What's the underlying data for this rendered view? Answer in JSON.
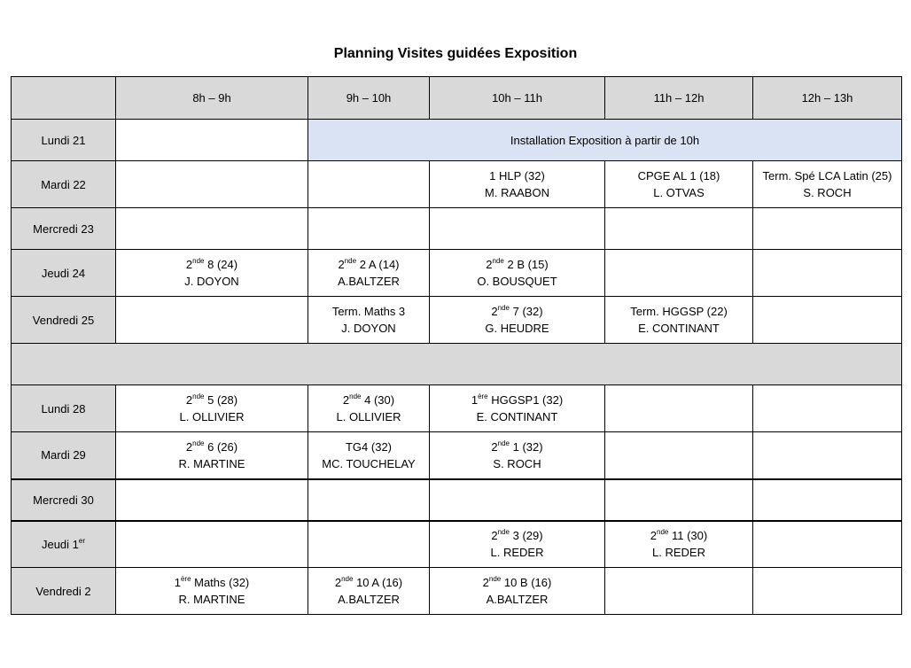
{
  "title": "Planning Visites guidées Exposition",
  "colors": {
    "header_bg": "#d9d9d9",
    "highlight_bg": "#dae3f3"
  },
  "columns": [
    "",
    "8h – 9h",
    "9h – 10h",
    "10h – 11h",
    "11h – 12h",
    "12h – 13h"
  ],
  "rows": [
    {
      "day": "Lundi 21",
      "span": {
        "from": 2,
        "cols": 4,
        "text": "Installation Exposition à partir de 10h"
      }
    },
    {
      "day": "Mardi 22",
      "cells": [
        null,
        null,
        {
          "a": "1 HLP (32)",
          "name": "M. RAABON"
        },
        {
          "a": "CPGE AL 1 (18)",
          "name": "L. OTVAS"
        },
        {
          "a": "Term. Spé LCA Latin (25)",
          "name": "S. ROCH"
        }
      ]
    },
    {
      "day": "Mercredi 23",
      "cells": [
        null,
        null,
        null,
        null,
        null
      ]
    },
    {
      "day": "Jeudi 24",
      "cells": [
        {
          "a": "2",
          "sup": "nde",
          "b": " 8 (24)",
          "name": "J. DOYON"
        },
        {
          "a": "2",
          "sup": "nde",
          "b": " 2 A (14)",
          "name": "A.BALTZER"
        },
        {
          "a": "2",
          "sup": "nde",
          "b": " 2 B (15)",
          "name": "O. BOUSQUET"
        },
        null,
        null
      ]
    },
    {
      "day": "Vendredi 25",
      "cells": [
        null,
        {
          "a": "Term. Maths 3",
          "name": "J. DOYON"
        },
        {
          "a": "2",
          "sup": "nde",
          "b": " 7 (32)",
          "name": "G. HEUDRE"
        },
        {
          "a": "Term. HGGSP (22)",
          "name": "E. CONTINANT"
        },
        null
      ]
    },
    {
      "gap": true
    },
    {
      "day": "Lundi 28",
      "cells": [
        {
          "a": "2",
          "sup": "nde",
          "b": " 5 (28)",
          "name": "L. OLLIVIER"
        },
        {
          "a": "2",
          "sup": "nde",
          "b": " 4 (30)",
          "name": "L. OLLIVIER"
        },
        {
          "a": "1",
          "sup": "ère",
          "b": " HGGSP1 (32)",
          "name": "E. CONTINANT"
        },
        null,
        null
      ]
    },
    {
      "day": "Mardi 29",
      "cells": [
        {
          "a": "2",
          "sup": "nde",
          "b": " 6 (26)",
          "name": "R. MARTINE"
        },
        {
          "a": "TG4 (32)",
          "name": "MC. TOUCHELAY"
        },
        {
          "a": "2",
          "sup": "nde",
          "b": " 1 (32)",
          "name": "S. ROCH"
        },
        null,
        null
      ]
    },
    {
      "day": "Mercredi 30",
      "thick": true,
      "cells": [
        null,
        null,
        null,
        null,
        null
      ]
    },
    {
      "day": "Jeudi 1",
      "day_sup": "er",
      "thick": true,
      "cells": [
        null,
        null,
        {
          "a": "2",
          "sup": "nde",
          "b": " 3 (29)",
          "name": "L. REDER"
        },
        {
          "a": "2",
          "sup": "nde",
          "b": " 11 (30)",
          "name": "L. REDER"
        },
        null
      ]
    },
    {
      "day": "Vendredi 2",
      "cells": [
        {
          "a": "1",
          "sup": "ère",
          "b": " Maths (32)",
          "name": "R. MARTINE"
        },
        {
          "a": "2",
          "sup": "nde",
          "b": " 10 A (16)",
          "name": "A.BALTZER"
        },
        {
          "a": "2",
          "sup": "nde",
          "b": " 10 B (16)",
          "name": "A.BALTZER"
        },
        null,
        null
      ]
    }
  ]
}
